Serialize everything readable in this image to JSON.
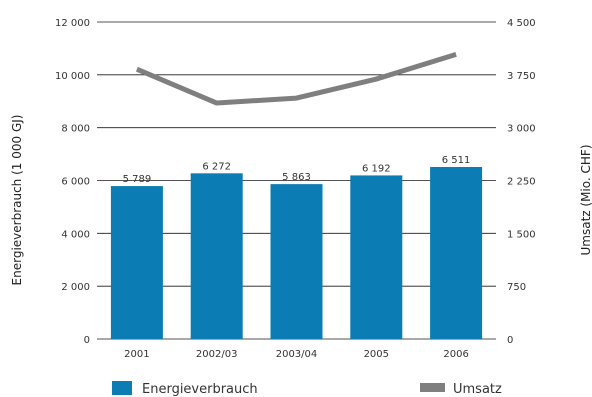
{
  "chart_data": {
    "type": "bar",
    "categories": [
      "2001",
      "2002/03",
      "2003/04",
      "2005",
      "2006"
    ],
    "series": [
      {
        "name": "Energieverbrauch",
        "type": "bar",
        "axis": "left",
        "color": "#0b7db4",
        "values": [
          5789,
          6272,
          5863,
          6192,
          6511
        ],
        "labels": [
          "5 789",
          "6 272",
          "5 863",
          "6 192",
          "6 511"
        ]
      },
      {
        "name": "Umsatz",
        "type": "line",
        "axis": "right",
        "color": "#7f7f7f",
        "values": [
          3830,
          3350,
          3420,
          3690,
          4040
        ]
      }
    ],
    "y_left": {
      "label": "Energieverbrauch (1 000 GJ)",
      "range": [
        0,
        12000
      ],
      "ticks": [
        0,
        2000,
        4000,
        6000,
        8000,
        10000,
        12000
      ],
      "tick_labels": [
        "0",
        "2 000",
        "4 000",
        "6 000",
        "8 000",
        "10 000",
        "12 000"
      ]
    },
    "y_right": {
      "label": "Umsatz (Mio. CHF)",
      "range": [
        0,
        4500
      ],
      "ticks": [
        0,
        750,
        1500,
        2250,
        3000,
        3750,
        4500
      ],
      "tick_labels": [
        "0",
        "750",
        "1 500",
        "2 250",
        "3 000",
        "3 750",
        "4 500"
      ]
    },
    "grid": true,
    "legend_position": "bottom"
  }
}
